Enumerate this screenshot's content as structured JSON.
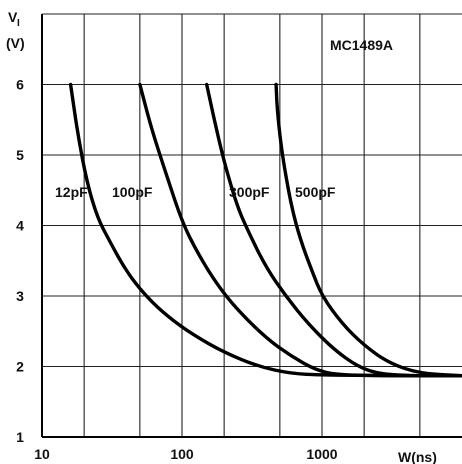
{
  "chart_data": {
    "type": "line",
    "title": "MC1489A",
    "ylabel_line1": "V",
    "ylabel_sub": "I",
    "ylabel_line2": "(V)",
    "xlabel": "W(ns)",
    "xscale": "log",
    "xlim": [
      10,
      10000
    ],
    "ylim": [
      1,
      7
    ],
    "grid": true,
    "x_ticks": [
      {
        "value": 10,
        "label": "10"
      },
      {
        "value": 100,
        "label": "100"
      },
      {
        "value": 1000,
        "label": "1000"
      }
    ],
    "y_ticks": [
      {
        "value": 1,
        "label": "1"
      },
      {
        "value": 2,
        "label": "2"
      },
      {
        "value": 3,
        "label": "3"
      },
      {
        "value": 4,
        "label": "4"
      },
      {
        "value": 5,
        "label": "5"
      },
      {
        "value": 6,
        "label": "6"
      }
    ],
    "series": [
      {
        "name": "12pF",
        "points": [
          [
            16,
            6.0
          ],
          [
            18,
            5.3
          ],
          [
            21,
            4.6
          ],
          [
            25,
            4.1
          ],
          [
            30,
            3.8
          ],
          [
            40,
            3.35
          ],
          [
            55,
            3.0
          ],
          [
            80,
            2.7
          ],
          [
            120,
            2.45
          ],
          [
            200,
            2.2
          ],
          [
            350,
            2.0
          ],
          [
            600,
            1.9
          ],
          [
            1000,
            1.88
          ],
          [
            3000,
            1.87
          ],
          [
            10000,
            1.87
          ]
        ]
      },
      {
        "name": "100pF",
        "points": [
          [
            50,
            6.0
          ],
          [
            60,
            5.4
          ],
          [
            75,
            4.8
          ],
          [
            100,
            4.05
          ],
          [
            130,
            3.6
          ],
          [
            180,
            3.15
          ],
          [
            250,
            2.8
          ],
          [
            400,
            2.4
          ],
          [
            600,
            2.15
          ],
          [
            900,
            1.95
          ],
          [
            1300,
            1.88
          ],
          [
            3000,
            1.87
          ],
          [
            10000,
            1.87
          ]
        ]
      },
      {
        "name": "300pF",
        "points": [
          [
            150,
            6.0
          ],
          [
            170,
            5.5
          ],
          [
            200,
            4.9
          ],
          [
            250,
            4.25
          ],
          [
            300,
            3.9
          ],
          [
            400,
            3.4
          ],
          [
            550,
            3.0
          ],
          [
            800,
            2.6
          ],
          [
            1200,
            2.25
          ],
          [
            1800,
            2.0
          ],
          [
            2500,
            1.9
          ],
          [
            4000,
            1.87
          ],
          [
            10000,
            1.87
          ]
        ]
      },
      {
        "name": "500pF",
        "points": [
          [
            470,
            6.0
          ],
          [
            480,
            5.6
          ],
          [
            520,
            5.0
          ],
          [
            600,
            4.3
          ],
          [
            700,
            3.8
          ],
          [
            850,
            3.35
          ],
          [
            1000,
            3.0
          ],
          [
            1400,
            2.6
          ],
          [
            2000,
            2.3
          ],
          [
            3000,
            2.05
          ],
          [
            5000,
            1.9
          ],
          [
            10000,
            1.87
          ]
        ]
      }
    ]
  }
}
